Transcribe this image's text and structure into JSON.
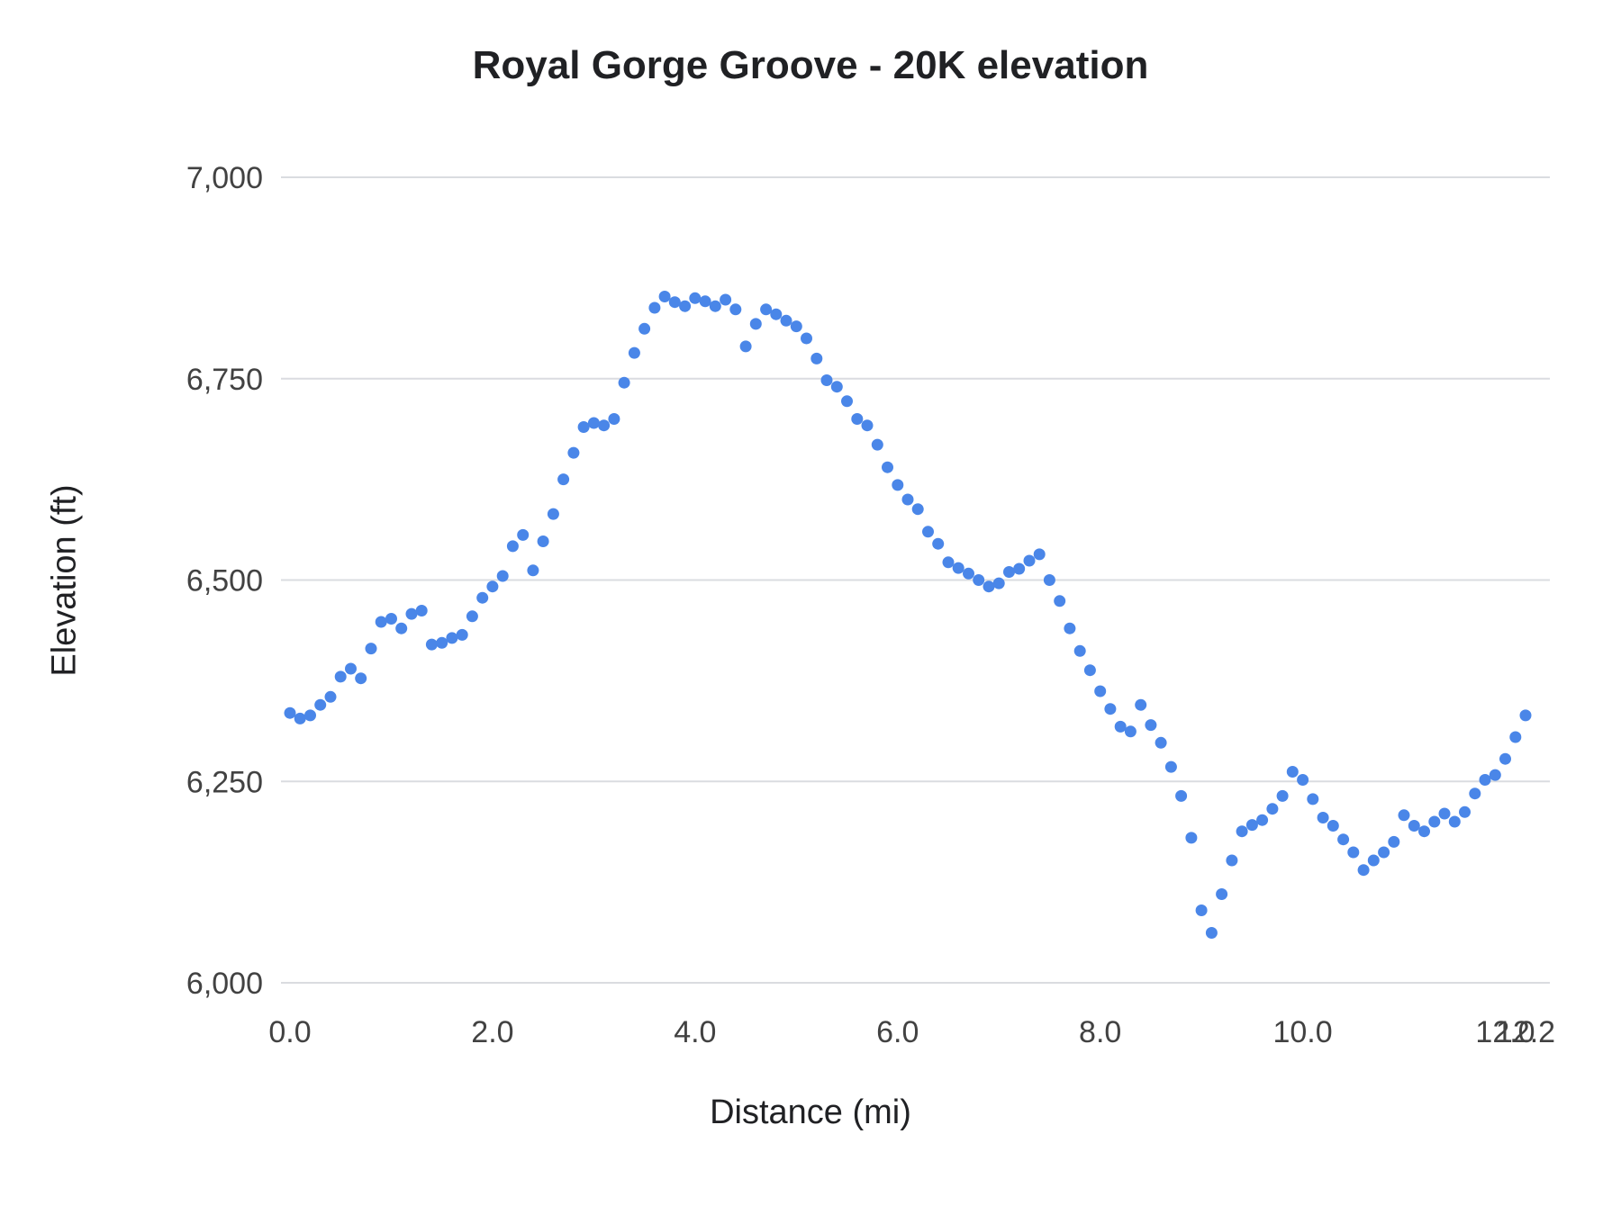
{
  "chart_data": {
    "type": "scatter",
    "title": "Royal Gorge Groove - 20K elevation",
    "xlabel": "Distance (mi)",
    "ylabel": "Elevation (ft)",
    "xlim": [
      0,
      12.2
    ],
    "ylim": [
      6000,
      7000
    ],
    "grid": "horizontal",
    "legend": "none",
    "point_color": "#4a86e8",
    "grid_color": "#dadce0",
    "tick_label_color": "#424242",
    "title_color": "#202124",
    "x_ticks": [
      {
        "value": 0,
        "label": "0.0"
      },
      {
        "value": 2,
        "label": "2.0"
      },
      {
        "value": 4,
        "label": "4.0"
      },
      {
        "value": 6,
        "label": "6.0"
      },
      {
        "value": 8,
        "label": "8.0"
      },
      {
        "value": 10,
        "label": "10.0"
      },
      {
        "value": 12,
        "label": "12.0"
      },
      {
        "value": 12.2,
        "label": "12.2"
      }
    ],
    "y_ticks": [
      {
        "value": 6000,
        "label": "6,000"
      },
      {
        "value": 6250,
        "label": "6,250"
      },
      {
        "value": 6500,
        "label": "6,500"
      },
      {
        "value": 6750,
        "label": "6,750"
      },
      {
        "value": 7000,
        "label": "7,000"
      }
    ],
    "series": [
      {
        "name": "elevation",
        "x": [
          0,
          0.1,
          0.2,
          0.3,
          0.4,
          0.5,
          0.6,
          0.7,
          0.8,
          0.9,
          1,
          1.1,
          1.2,
          1.3,
          1.4,
          1.5,
          1.6,
          1.7,
          1.8,
          1.9,
          2,
          2.1,
          2.2,
          2.3,
          2.4,
          2.5,
          2.6,
          2.7,
          2.8,
          2.9,
          3,
          3.1,
          3.2,
          3.3,
          3.4,
          3.5,
          3.6,
          3.7,
          3.8,
          3.9,
          4,
          4.1,
          4.2,
          4.3,
          4.4,
          4.5,
          4.6,
          4.7,
          4.8,
          4.9,
          5,
          5.1,
          5.2,
          5.3,
          5.4,
          5.5,
          5.6,
          5.7,
          5.8,
          5.9,
          6,
          6.1,
          6.2,
          6.3,
          6.4,
          6.5,
          6.6,
          6.7,
          6.8,
          6.9,
          7,
          7.1,
          7.2,
          7.3,
          7.4,
          7.5,
          7.6,
          7.7,
          7.8,
          7.9,
          8,
          8.1,
          8.2,
          8.3,
          8.4,
          8.5,
          8.6,
          8.7,
          8.8,
          8.9,
          9,
          9.1,
          9.2,
          9.3,
          9.4,
          9.5,
          9.6,
          9.7,
          9.8,
          9.9,
          10,
          10.1,
          10.2,
          10.3,
          10.4,
          10.5,
          10.6,
          10.7,
          10.8,
          10.9,
          11,
          11.1,
          11.2,
          11.3,
          11.4,
          11.5,
          11.6,
          11.7,
          11.8,
          11.9,
          12,
          12.1,
          12.2
        ],
        "y": [
          6335,
          6328,
          6332,
          6345,
          6355,
          6380,
          6390,
          6378,
          6415,
          6448,
          6452,
          6440,
          6458,
          6462,
          6420,
          6422,
          6428,
          6432,
          6455,
          6478,
          6492,
          6505,
          6542,
          6556,
          6512,
          6548,
          6582,
          6625,
          6658,
          6690,
          6695,
          6692,
          6700,
          6745,
          6782,
          6812,
          6838,
          6852,
          6845,
          6840,
          6850,
          6846,
          6840,
          6848,
          6836,
          6790,
          6818,
          6836,
          6830,
          6822,
          6815,
          6800,
          6775,
          6748,
          6740,
          6722,
          6700,
          6692,
          6668,
          6640,
          6618,
          6600,
          6588,
          6560,
          6545,
          6522,
          6515,
          6508,
          6500,
          6492,
          6496,
          6510,
          6514,
          6524,
          6532,
          6500,
          6474,
          6440,
          6412,
          6388,
          6362,
          6340,
          6318,
          6312,
          6345,
          6320,
          6298,
          6268,
          6232,
          6180,
          6090,
          6062,
          6110,
          6152,
          6188,
          6196,
          6202,
          6216,
          6232,
          6262,
          6252,
          6228,
          6205,
          6195,
          6178,
          6162,
          6140,
          6152,
          6162,
          6175,
          6208,
          6195,
          6188,
          6200,
          6210,
          6200,
          6212,
          6235,
          6252,
          6258,
          6278,
          6305,
          6332
        ]
      }
    ]
  }
}
